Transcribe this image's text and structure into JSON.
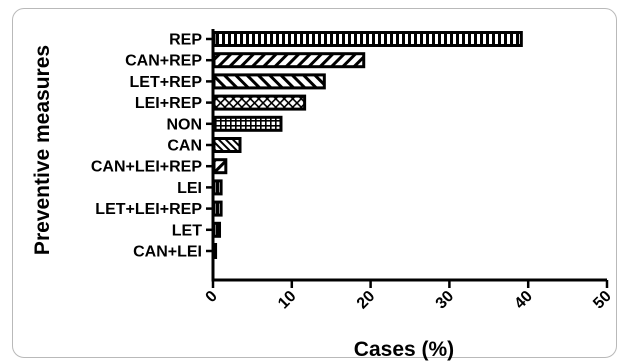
{
  "chart_data": {
    "type": "bar",
    "orientation": "horizontal",
    "categories": [
      "REP",
      "CAN+REP",
      "LET+REP",
      "LEI+REP",
      "NON",
      "CAN",
      "CAN+LEI+REP",
      "LEI",
      "LET+LEI+REP",
      "LET",
      "CAN+LEI"
    ],
    "values": [
      39,
      19,
      14,
      11.5,
      8.5,
      3.3,
      1.5,
      0.9,
      0.9,
      0.7,
      0.2
    ],
    "patterns": [
      "vertical-stripes",
      "diagonal-forward",
      "diagonal-back",
      "crosshatch",
      "grid",
      "diagonal-back-fine",
      "diagonal-forward",
      "vertical-stripes",
      "vertical-stripes",
      "vertical-stripes",
      "solid"
    ],
    "xlabel": "Cases (%)",
    "ylabel": "Preventive measures",
    "xlim": [
      0,
      50
    ],
    "xticks": [
      "0",
      "10",
      "20",
      "30",
      "40",
      "50"
    ],
    "grid": false,
    "legend": "none"
  },
  "colors": {
    "bar_stroke": "#000000",
    "bar_fill": "#ffffff",
    "frame": "#b9b9b9"
  }
}
